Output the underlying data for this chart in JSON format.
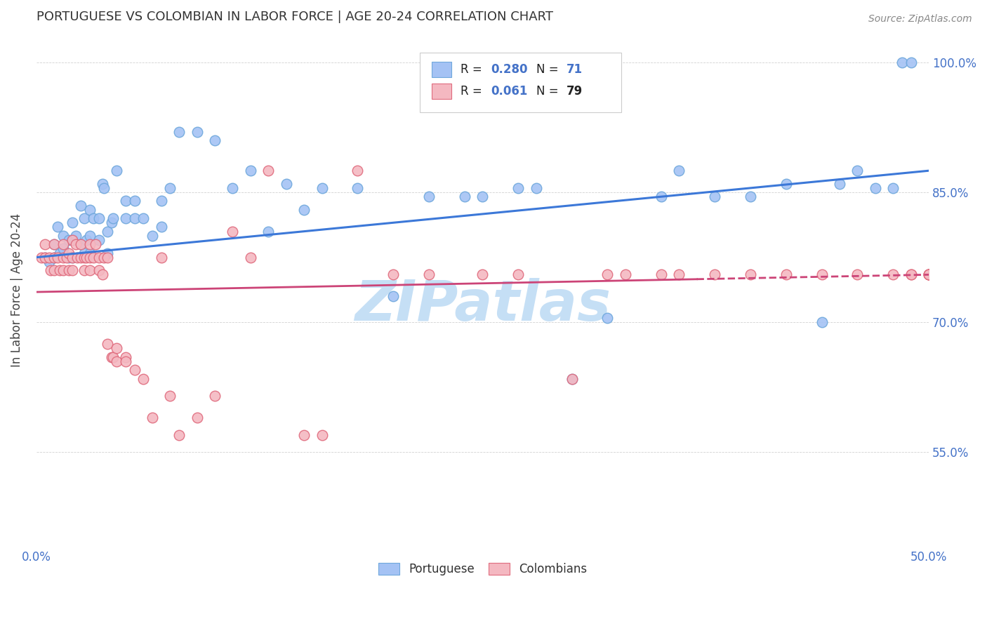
{
  "title": "PORTUGUESE VS COLOMBIAN IN LABOR FORCE | AGE 20-24 CORRELATION CHART",
  "source": "Source: ZipAtlas.com",
  "ylabel": "In Labor Force | Age 20-24",
  "xlim": [
    0.0,
    0.5
  ],
  "ylim": [
    0.44,
    1.035
  ],
  "blue_color": "#a4c2f4",
  "blue_edge_color": "#6fa8dc",
  "pink_color": "#f4b8c1",
  "pink_edge_color": "#e06c7e",
  "blue_line_color": "#3c78d8",
  "pink_line_color": "#cc4477",
  "watermark_color": "#c5dff5",
  "title_color": "#333333",
  "source_color": "#888888",
  "tick_color": "#4472c8",
  "blue_x": [
    0.005,
    0.007,
    0.01,
    0.01,
    0.012,
    0.013,
    0.015,
    0.015,
    0.018,
    0.018,
    0.02,
    0.02,
    0.02,
    0.022,
    0.025,
    0.025,
    0.027,
    0.027,
    0.028,
    0.03,
    0.03,
    0.03,
    0.032,
    0.035,
    0.035,
    0.037,
    0.038,
    0.04,
    0.04,
    0.042,
    0.043,
    0.045,
    0.05,
    0.05,
    0.055,
    0.055,
    0.06,
    0.065,
    0.07,
    0.07,
    0.075,
    0.08,
    0.09,
    0.1,
    0.11,
    0.12,
    0.13,
    0.14,
    0.15,
    0.16,
    0.18,
    0.2,
    0.22,
    0.24,
    0.25,
    0.27,
    0.28,
    0.3,
    0.32,
    0.35,
    0.36,
    0.38,
    0.4,
    0.42,
    0.44,
    0.45,
    0.46,
    0.47,
    0.48,
    0.485,
    0.49
  ],
  "blue_y": [
    0.775,
    0.77,
    0.775,
    0.79,
    0.81,
    0.78,
    0.8,
    0.785,
    0.775,
    0.795,
    0.795,
    0.815,
    0.775,
    0.8,
    0.79,
    0.835,
    0.78,
    0.82,
    0.795,
    0.78,
    0.8,
    0.83,
    0.82,
    0.795,
    0.82,
    0.86,
    0.855,
    0.78,
    0.805,
    0.815,
    0.82,
    0.875,
    0.82,
    0.84,
    0.82,
    0.84,
    0.82,
    0.8,
    0.84,
    0.81,
    0.855,
    0.92,
    0.92,
    0.91,
    0.855,
    0.875,
    0.805,
    0.86,
    0.83,
    0.855,
    0.855,
    0.73,
    0.845,
    0.845,
    0.845,
    0.855,
    0.855,
    0.635,
    0.705,
    0.845,
    0.875,
    0.845,
    0.845,
    0.86,
    0.7,
    0.86,
    0.875,
    0.855,
    0.855,
    1.0,
    1.0
  ],
  "pink_x": [
    0.003,
    0.005,
    0.005,
    0.007,
    0.008,
    0.01,
    0.01,
    0.01,
    0.012,
    0.013,
    0.015,
    0.015,
    0.015,
    0.017,
    0.018,
    0.018,
    0.02,
    0.02,
    0.02,
    0.022,
    0.023,
    0.025,
    0.025,
    0.027,
    0.027,
    0.028,
    0.03,
    0.03,
    0.03,
    0.032,
    0.033,
    0.035,
    0.035,
    0.037,
    0.038,
    0.04,
    0.04,
    0.042,
    0.043,
    0.045,
    0.045,
    0.05,
    0.05,
    0.055,
    0.06,
    0.065,
    0.07,
    0.075,
    0.08,
    0.09,
    0.1,
    0.11,
    0.12,
    0.13,
    0.15,
    0.16,
    0.18,
    0.2,
    0.22,
    0.25,
    0.27,
    0.3,
    0.32,
    0.33,
    0.35,
    0.36,
    0.38,
    0.4,
    0.42,
    0.44,
    0.46,
    0.48,
    0.49,
    0.49,
    0.5,
    0.5,
    0.5,
    0.5,
    0.5
  ],
  "pink_y": [
    0.775,
    0.775,
    0.79,
    0.775,
    0.76,
    0.775,
    0.79,
    0.76,
    0.775,
    0.76,
    0.775,
    0.79,
    0.76,
    0.775,
    0.78,
    0.76,
    0.775,
    0.795,
    0.76,
    0.79,
    0.775,
    0.775,
    0.79,
    0.775,
    0.76,
    0.775,
    0.775,
    0.79,
    0.76,
    0.775,
    0.79,
    0.775,
    0.76,
    0.755,
    0.775,
    0.775,
    0.675,
    0.66,
    0.66,
    0.67,
    0.655,
    0.66,
    0.655,
    0.645,
    0.635,
    0.59,
    0.775,
    0.615,
    0.57,
    0.59,
    0.615,
    0.805,
    0.775,
    0.875,
    0.57,
    0.57,
    0.875,
    0.755,
    0.755,
    0.755,
    0.755,
    0.635,
    0.755,
    0.755,
    0.755,
    0.755,
    0.755,
    0.755,
    0.755,
    0.755,
    0.755,
    0.755,
    0.755,
    0.755,
    0.755,
    0.755,
    0.755,
    0.755,
    0.755
  ]
}
